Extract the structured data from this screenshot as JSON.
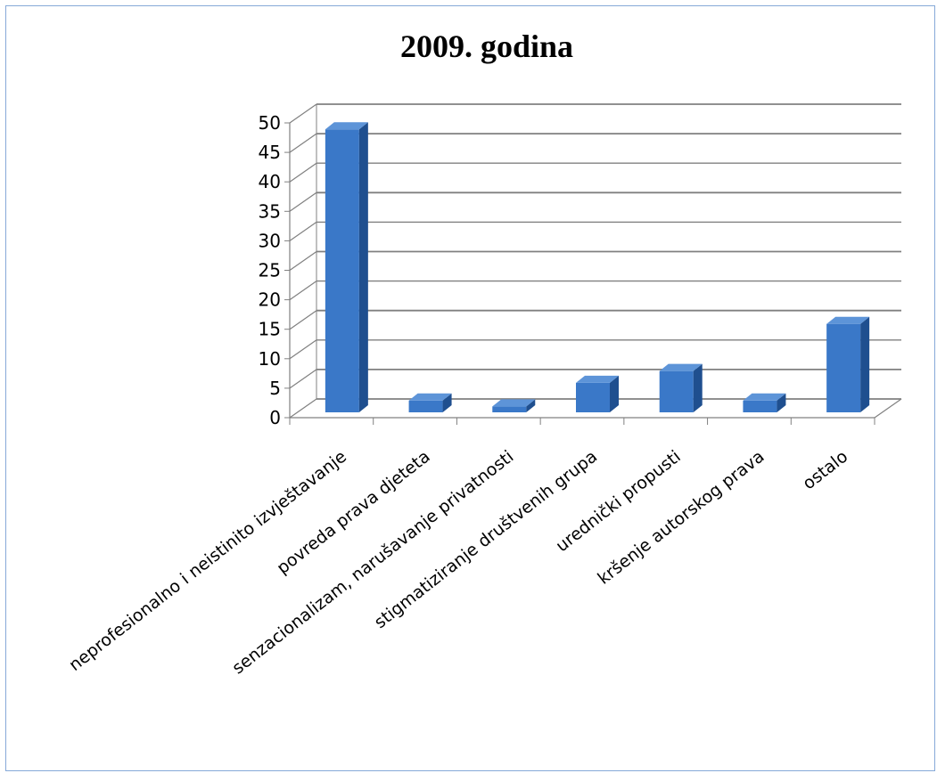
{
  "chart_data": {
    "type": "bar",
    "title": "2009. godina",
    "categories": [
      "neprofesionalno i neistinito izvještavanje",
      "povreda prava djeteta",
      "senzacionalizam, narušavanje privatnosti",
      "stigmatiziranje društvenih grupa",
      "urednički propusti",
      "kršenje autorskog prava",
      "ostalo"
    ],
    "values": [
      48,
      2,
      1,
      5,
      7,
      2,
      15
    ],
    "yticks": [
      "0",
      "5",
      "10",
      "15",
      "20",
      "25",
      "30",
      "35",
      "40",
      "45",
      "50"
    ],
    "ylim": [
      0,
      50
    ],
    "xlabel": "",
    "ylabel": "",
    "grid": true,
    "legend": "none",
    "style": "3d-column",
    "colors": {
      "bar_front": "#3a78c8",
      "bar_side": "#1f4f8f",
      "bar_top": "#5d94d8",
      "gridline": "#808080",
      "frame_border": "#86a9d8"
    }
  }
}
